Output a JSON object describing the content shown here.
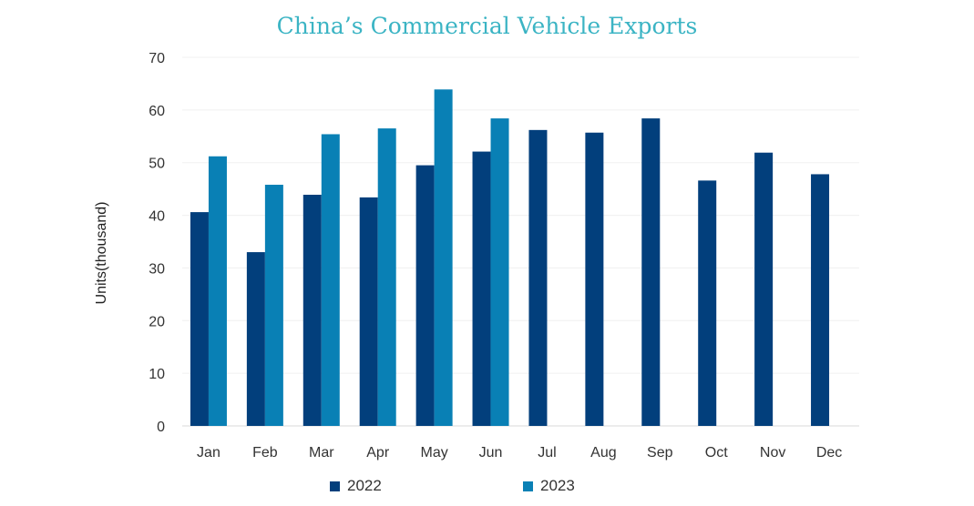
{
  "chart_data": {
    "type": "bar",
    "title": "China’s Commercial Vehicle Exports",
    "xlabel": "",
    "ylabel": "Units(thousand)",
    "ylim": [
      0,
      70
    ],
    "yticks": [
      "0",
      "10",
      "20",
      "30",
      "40",
      "50",
      "60",
      "70"
    ],
    "grid": true,
    "legend_position": "bottom",
    "categories": [
      "Jan",
      "Feb",
      "Mar",
      "Apr",
      "May",
      "Jun",
      "Jul",
      "Aug",
      "Sep",
      "Oct",
      "Nov",
      "Dec"
    ],
    "series": [
      {
        "name": "2022",
        "color": "#023f7c",
        "values": [
          40.6,
          33.0,
          43.9,
          43.4,
          49.5,
          52.1,
          56.2,
          55.7,
          58.4,
          46.6,
          51.9,
          47.8
        ]
      },
      {
        "name": "2023",
        "color": "#0980b5",
        "values": [
          51.2,
          45.8,
          55.4,
          56.5,
          63.9,
          58.4,
          null,
          null,
          null,
          null,
          null,
          null
        ]
      }
    ]
  }
}
